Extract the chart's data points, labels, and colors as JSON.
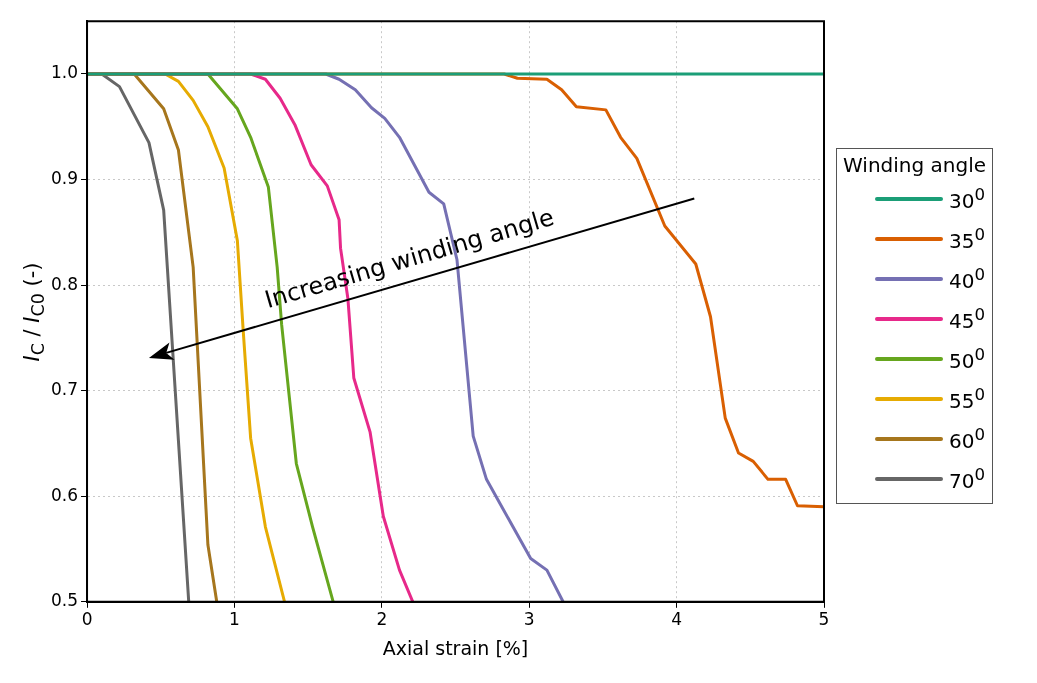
{
  "chart_data": {
    "type": "line",
    "xlabel": "Axial strain [%]",
    "ylabel": "I$_{C}$ / I$_{C0}$ (-)",
    "legend_title": "Winding angle",
    "xlim": [
      0,
      5
    ],
    "ylim": [
      0.5,
      1.05
    ],
    "xticks": [
      0,
      1,
      2,
      3,
      4,
      5
    ],
    "yticks": [
      0.5,
      0.6,
      0.7,
      0.8,
      0.9,
      {
        "value": 1,
        "label": "1.0"
      }
    ],
    "grid": true,
    "legend": "right",
    "marker": "none",
    "line_style": "solid",
    "annotations": [
      "Increasing winding angle"
    ],
    "series": [
      {
        "name": "30$^{0}$",
        "color": "#1b9e77",
        "x": [
          0,
          5
        ],
        "values": [
          1,
          1
        ]
      },
      {
        "name": "35$^{0}$",
        "color": "#d95f02",
        "x": [
          0,
          2.83,
          2.92,
          3.12,
          3.22,
          3.32,
          3.52,
          3.62,
          3.73,
          3.92,
          4.13,
          4.23,
          4.33,
          4.42,
          4.52,
          4.62,
          4.74,
          4.82,
          5.0
        ],
        "values": [
          1,
          1,
          0.996,
          0.995,
          0.985,
          0.969,
          0.966,
          0.94,
          0.92,
          0.856,
          0.82,
          0.77,
          0.674,
          0.641,
          0.633,
          0.616,
          0.616,
          0.591,
          0.59
        ]
      },
      {
        "name": "40$^{0}$",
        "color": "#7570b3",
        "x": [
          0,
          1.62,
          1.71,
          1.82,
          1.93,
          2.02,
          2.12,
          2.32,
          2.42,
          2.51,
          2.62,
          2.71,
          3.01,
          3.12,
          3.23
        ],
        "values": [
          1,
          1,
          0.995,
          0.985,
          0.968,
          0.958,
          0.94,
          0.888,
          0.877,
          0.824,
          0.657,
          0.616,
          0.541,
          0.53,
          0.5
        ]
      },
      {
        "name": "45$^{0}$",
        "color": "#e7298a",
        "x": [
          0,
          1.11,
          1.21,
          1.31,
          1.41,
          1.52,
          1.63,
          1.71,
          1.72,
          1.77,
          1.81,
          1.92,
          2.01,
          2.12,
          2.21
        ],
        "values": [
          1,
          1,
          0.995,
          0.977,
          0.952,
          0.914,
          0.894,
          0.862,
          0.835,
          0.787,
          0.712,
          0.661,
          0.581,
          0.53,
          0.5
        ]
      },
      {
        "name": "50$^{0}$",
        "color": "#66a61e",
        "x": [
          0,
          0.82,
          1.02,
          1.11,
          1.23,
          1.29,
          1.32,
          1.42,
          1.53,
          1.67
        ],
        "values": [
          1,
          1,
          0.967,
          0.94,
          0.893,
          0.817,
          0.763,
          0.631,
          0.571,
          0.5
        ]
      },
      {
        "name": "55$^{0}$",
        "color": "#e6ab02",
        "x": [
          0,
          0.53,
          0.62,
          0.72,
          0.82,
          0.93,
          1.02,
          1.06,
          1.11,
          1.21,
          1.34
        ],
        "values": [
          1,
          1,
          0.993,
          0.975,
          0.95,
          0.911,
          0.842,
          0.756,
          0.655,
          0.571,
          0.5
        ]
      },
      {
        "name": "60$^{0}$",
        "color": "#a6761d",
        "x": [
          0,
          0.32,
          0.52,
          0.62,
          0.72,
          0.82,
          0.88
        ],
        "values": [
          1,
          1,
          0.967,
          0.928,
          0.817,
          0.554,
          0.5
        ]
      },
      {
        "name": "70$^{0}$",
        "color": "#666666",
        "x": [
          0,
          0.1,
          0.22,
          0.42,
          0.52,
          0.69
        ],
        "values": [
          1,
          1,
          0.988,
          0.935,
          0.871,
          0.5
        ]
      }
    ]
  }
}
